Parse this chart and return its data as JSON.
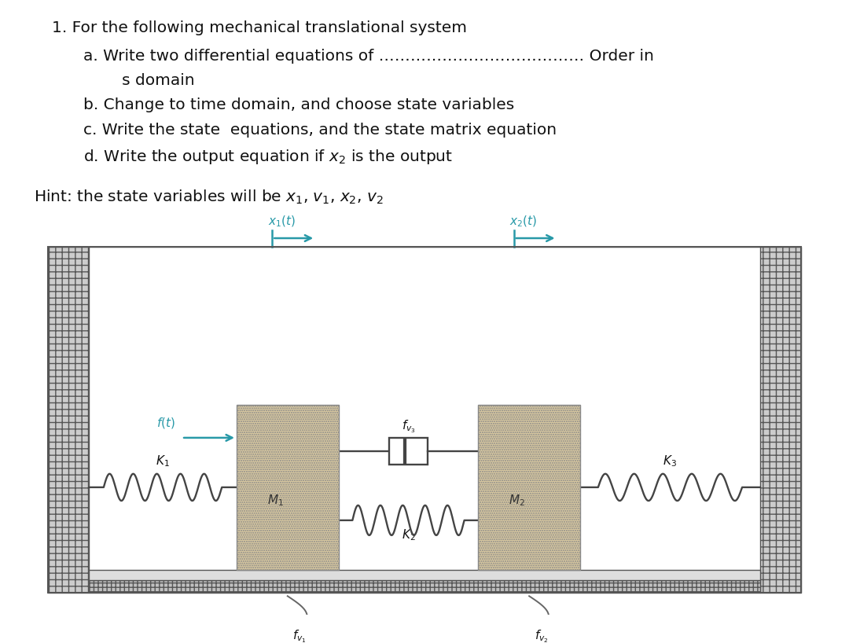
{
  "bg_color": "#ffffff",
  "title_text": "1. For the following mechanical translational system",
  "line_a1": "a. Write two differential equations of ………………………………… Order in",
  "line_a2": "   s domain",
  "line_b": "b. Change to time domain, and choose state variables",
  "line_c": "c. Write the state  equations, and the state matrix equation",
  "line_d": "d. Write the output equation if x₂ is the output",
  "hint": "Hint: the state variables will be x₁, v₁, x₂, v₂",
  "arrow_color": "#2899a8",
  "mass_facecolor": "#d8c8a0",
  "wall_facecolor": "#c8c8c8",
  "floor_facecolor": "#c0c0c0",
  "spring_color": "#555555",
  "label_color": "#2899a8",
  "black": "#111111",
  "fs_text": 14.5,
  "fs_hint": 14.5,
  "fs_diagram": 12
}
